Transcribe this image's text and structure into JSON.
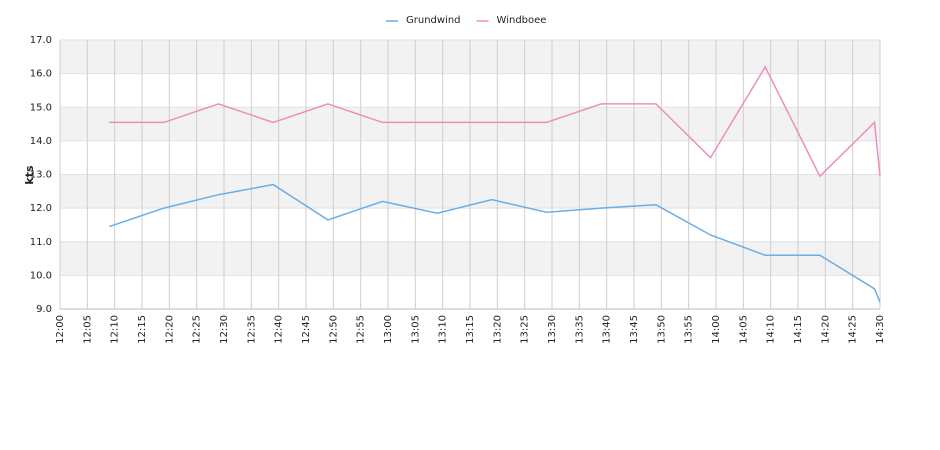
{
  "chart_data": {
    "type": "line",
    "y_label": "kts",
    "x": [
      "12:09",
      "12:19",
      "12:29",
      "12:39",
      "12:49",
      "12:59",
      "13:09",
      "13:19",
      "13:29",
      "13:39",
      "13:49",
      "13:59",
      "14:09",
      "14:19",
      "14:29",
      "14:30"
    ],
    "series": [
      {
        "name": "Grundwind",
        "color": "#6aaee8",
        "values": [
          11.45,
          12.0,
          12.4,
          12.7,
          11.65,
          12.2,
          11.85,
          12.25,
          11.88,
          12.0,
          12.1,
          11.2,
          10.6,
          10.6,
          9.6,
          9.2
        ]
      },
      {
        "name": "Windboee",
        "color": "#f08cc0",
        "values": [
          14.55,
          14.55,
          15.1,
          14.55,
          15.1,
          14.55,
          14.55,
          14.55,
          14.55,
          15.1,
          15.1,
          13.5,
          16.2,
          12.95,
          14.55,
          12.95
        ]
      }
    ],
    "xlim": [
      "12:00",
      "14:30"
    ],
    "xticks": [
      "12:00",
      "12:05",
      "12:10",
      "12:15",
      "12:20",
      "12:25",
      "12:30",
      "12:35",
      "12:40",
      "12:45",
      "12:50",
      "12:55",
      "13:00",
      "13:05",
      "13:10",
      "13:15",
      "13:20",
      "13:25",
      "13:30",
      "13:35",
      "13:40",
      "13:45",
      "13:50",
      "13:55",
      "14:00",
      "14:05",
      "14:10",
      "14:15",
      "14:20",
      "14:25",
      "14:30"
    ],
    "ylim": [
      9,
      17
    ],
    "yticks": [
      {
        "value": 9,
        "label": "9.0"
      },
      {
        "value": 10,
        "label": "10.0"
      },
      {
        "value": 11,
        "label": "11.0"
      },
      {
        "value": 12,
        "label": "12.0"
      },
      {
        "value": 13,
        "label": "13.0"
      },
      {
        "value": 14,
        "label": "14.0"
      },
      {
        "value": 15,
        "label": "15.0"
      },
      {
        "value": 16,
        "label": "16.0"
      },
      {
        "value": 17,
        "label": "17.0"
      }
    ],
    "grid": true,
    "alternate_bands": true,
    "legend": "top"
  }
}
